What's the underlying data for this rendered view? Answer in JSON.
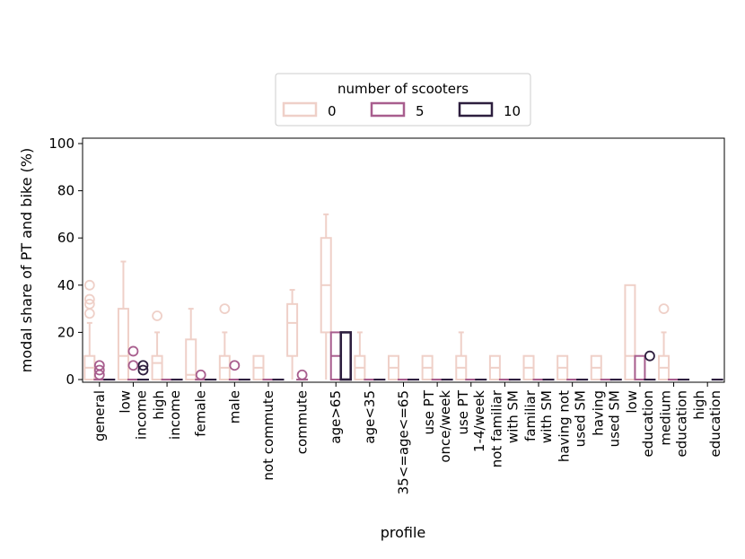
{
  "chart_data": {
    "type": "box",
    "xlabel": "profile",
    "ylabel": "modal share of PT and bike (%)",
    "ylim": [
      0,
      100
    ],
    "yticks": [
      0,
      20,
      40,
      60,
      80,
      100
    ],
    "legend": {
      "title": "number of scooters",
      "placement": "top-center",
      "entries": [
        "0",
        "5",
        "10"
      ]
    },
    "series_colors": [
      "#efd0c8",
      "#a85e8e",
      "#2d1e3e"
    ],
    "categories": [
      "general",
      "low\nincome",
      "high\nincome",
      "female",
      "male",
      "not commute",
      "commute",
      "age>65",
      "age<35",
      "35<=age<=65",
      "use PT\nonce/week",
      "use PT\n1-4/week",
      "not familiar\nwith SM",
      "familiar\nwith SM",
      "having not\nused SM",
      "having\nused SM",
      "low\neducation",
      "medium\neducation",
      "high\neducation"
    ],
    "series": [
      {
        "name": "0",
        "boxes": [
          {
            "min": 0,
            "q1": 0,
            "median": 5,
            "q3": 10,
            "max": 24,
            "outliers": [
              28,
              32,
              34,
              40
            ]
          },
          {
            "min": 0,
            "q1": 0,
            "median": 10,
            "q3": 30,
            "max": 50,
            "outliers": []
          },
          {
            "min": 0,
            "q1": 0,
            "median": 7,
            "q3": 10,
            "max": 20,
            "outliers": [
              27
            ]
          },
          {
            "min": 0,
            "q1": 0,
            "median": 2,
            "q3": 17,
            "max": 30,
            "outliers": []
          },
          {
            "min": 0,
            "q1": 0,
            "median": 5,
            "q3": 10,
            "max": 20,
            "outliers": [
              30
            ]
          },
          {
            "min": 0,
            "q1": 0,
            "median": 5,
            "q3": 10,
            "max": 10,
            "outliers": []
          },
          {
            "min": 0,
            "q1": 10,
            "median": 24,
            "q3": 32,
            "max": 38,
            "outliers": []
          },
          {
            "min": 0,
            "q1": 20,
            "median": 40,
            "q3": 60,
            "max": 70,
            "outliers": []
          },
          {
            "min": 0,
            "q1": 0,
            "median": 5,
            "q3": 10,
            "max": 20,
            "outliers": []
          },
          {
            "min": 0,
            "q1": 0,
            "median": 5,
            "q3": 10,
            "max": 10,
            "outliers": []
          },
          {
            "min": 0,
            "q1": 0,
            "median": 5,
            "q3": 10,
            "max": 10,
            "outliers": []
          },
          {
            "min": 0,
            "q1": 0,
            "median": 5,
            "q3": 10,
            "max": 20,
            "outliers": []
          },
          {
            "min": 0,
            "q1": 0,
            "median": 5,
            "q3": 10,
            "max": 10,
            "outliers": []
          },
          {
            "min": 0,
            "q1": 0,
            "median": 5,
            "q3": 10,
            "max": 10,
            "outliers": []
          },
          {
            "min": 0,
            "q1": 0,
            "median": 5,
            "q3": 10,
            "max": 10,
            "outliers": []
          },
          {
            "min": 0,
            "q1": 0,
            "median": 5,
            "q3": 10,
            "max": 10,
            "outliers": []
          },
          {
            "min": 0,
            "q1": 0,
            "median": 10,
            "q3": 40,
            "max": 40,
            "outliers": []
          },
          {
            "min": 0,
            "q1": 0,
            "median": 5,
            "q3": 10,
            "max": 20,
            "outliers": [
              30
            ]
          },
          null
        ]
      },
      {
        "name": "5",
        "boxes": [
          {
            "min": 0,
            "q1": 0,
            "median": 0,
            "q3": 0,
            "max": 0,
            "outliers": [
              2,
              4,
              6
            ]
          },
          {
            "min": 0,
            "q1": 0,
            "median": 0,
            "q3": 0,
            "max": 0,
            "outliers": [
              6,
              12
            ]
          },
          {
            "min": 0,
            "q1": 0,
            "median": 0,
            "q3": 0,
            "max": 0,
            "outliers": []
          },
          {
            "min": 0,
            "q1": 0,
            "median": 0,
            "q3": 0,
            "max": 0,
            "outliers": [
              2
            ]
          },
          {
            "min": 0,
            "q1": 0,
            "median": 0,
            "q3": 0,
            "max": 0,
            "outliers": [
              6
            ]
          },
          {
            "min": 0,
            "q1": 0,
            "median": 0,
            "q3": 0,
            "max": 0,
            "outliers": []
          },
          {
            "min": 0,
            "q1": 0,
            "median": 0,
            "q3": 0,
            "max": 0,
            "outliers": [
              2
            ]
          },
          {
            "min": 0,
            "q1": 0,
            "median": 10,
            "q3": 20,
            "max": 20,
            "outliers": []
          },
          {
            "min": 0,
            "q1": 0,
            "median": 0,
            "q3": 0,
            "max": 0,
            "outliers": []
          },
          {
            "min": 0,
            "q1": 0,
            "median": 0,
            "q3": 0,
            "max": 0,
            "outliers": []
          },
          {
            "min": 0,
            "q1": 0,
            "median": 0,
            "q3": 0,
            "max": 0,
            "outliers": []
          },
          {
            "min": 0,
            "q1": 0,
            "median": 0,
            "q3": 0,
            "max": 0,
            "outliers": []
          },
          {
            "min": 0,
            "q1": 0,
            "median": 0,
            "q3": 0,
            "max": 0,
            "outliers": []
          },
          {
            "min": 0,
            "q1": 0,
            "median": 0,
            "q3": 0,
            "max": 0,
            "outliers": []
          },
          {
            "min": 0,
            "q1": 0,
            "median": 0,
            "q3": 0,
            "max": 0,
            "outliers": []
          },
          {
            "min": 0,
            "q1": 0,
            "median": 0,
            "q3": 0,
            "max": 0,
            "outliers": []
          },
          {
            "min": 0,
            "q1": 0,
            "median": 0,
            "q3": 10,
            "max": 10,
            "outliers": []
          },
          {
            "min": 0,
            "q1": 0,
            "median": 0,
            "q3": 0,
            "max": 0,
            "outliers": []
          },
          null
        ]
      },
      {
        "name": "10",
        "boxes": [
          {
            "min": 0,
            "q1": 0,
            "median": 0,
            "q3": 0,
            "max": 0,
            "outliers": []
          },
          {
            "min": 0,
            "q1": 0,
            "median": 0,
            "q3": 0,
            "max": 0,
            "outliers": [
              4,
              6
            ]
          },
          {
            "min": 0,
            "q1": 0,
            "median": 0,
            "q3": 0,
            "max": 0,
            "outliers": []
          },
          {
            "min": 0,
            "q1": 0,
            "median": 0,
            "q3": 0,
            "max": 0,
            "outliers": []
          },
          {
            "min": 0,
            "q1": 0,
            "median": 0,
            "q3": 0,
            "max": 0,
            "outliers": []
          },
          {
            "min": 0,
            "q1": 0,
            "median": 0,
            "q3": 0,
            "max": 0,
            "outliers": []
          },
          null,
          {
            "min": 0,
            "q1": 0,
            "median": 0,
            "q3": 20,
            "max": 20,
            "outliers": []
          },
          {
            "min": 0,
            "q1": 0,
            "median": 0,
            "q3": 0,
            "max": 0,
            "outliers": []
          },
          {
            "min": 0,
            "q1": 0,
            "median": 0,
            "q3": 0,
            "max": 0,
            "outliers": []
          },
          {
            "min": 0,
            "q1": 0,
            "median": 0,
            "q3": 0,
            "max": 0,
            "outliers": []
          },
          {
            "min": 0,
            "q1": 0,
            "median": 0,
            "q3": 0,
            "max": 0,
            "outliers": []
          },
          {
            "min": 0,
            "q1": 0,
            "median": 0,
            "q3": 0,
            "max": 0,
            "outliers": []
          },
          {
            "min": 0,
            "q1": 0,
            "median": 0,
            "q3": 0,
            "max": 0,
            "outliers": []
          },
          {
            "min": 0,
            "q1": 0,
            "median": 0,
            "q3": 0,
            "max": 0,
            "outliers": []
          },
          {
            "min": 0,
            "q1": 0,
            "median": 0,
            "q3": 0,
            "max": 0,
            "outliers": []
          },
          {
            "min": 0,
            "q1": 0,
            "median": 0,
            "q3": 0,
            "max": 0,
            "outliers": [
              10
            ]
          },
          {
            "min": 0,
            "q1": 0,
            "median": 0,
            "q3": 0,
            "max": 0,
            "outliers": []
          },
          {
            "min": 0,
            "q1": 0,
            "median": 0,
            "q3": 0,
            "max": 0,
            "outliers": []
          }
        ]
      }
    ]
  }
}
